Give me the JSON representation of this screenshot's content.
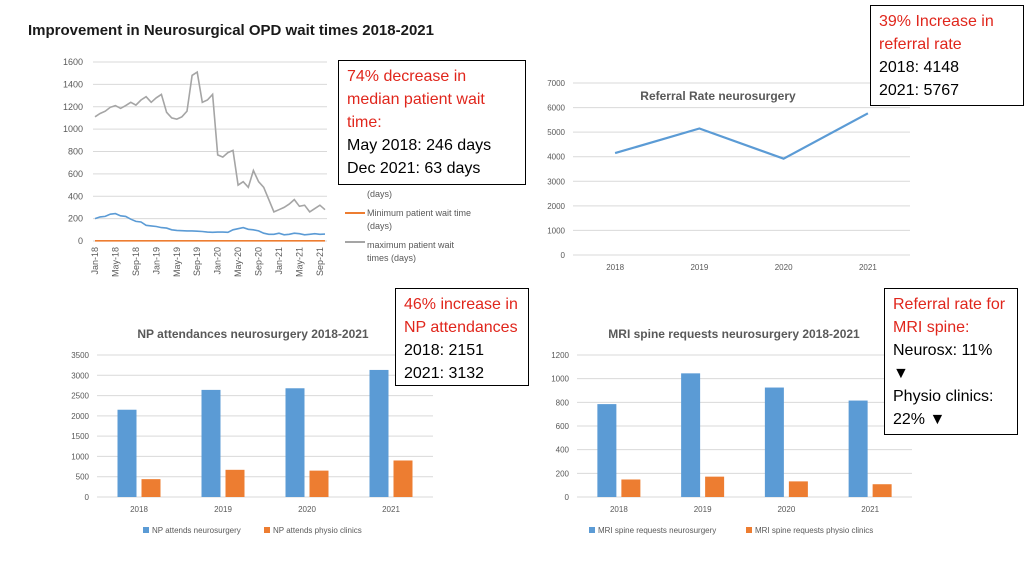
{
  "page_title": "Improvement in Neurosurgical OPD wait times  2018-2021",
  "callouts": {
    "median": {
      "headline": "74% decrease in median patient wait time:",
      "line1": "May 2018: 246 days",
      "line2": "Dec 2021: 63 days"
    },
    "referral": {
      "headline": "39% Increase in referral rate",
      "line1": "2018: 4148",
      "line2": "2021: 5767"
    },
    "np": {
      "headline": "46% increase in NP attendances",
      "line1": "2018: 2151",
      "line2": "2021: 3132"
    },
    "mri": {
      "headline": "Referral rate for MRI spine:",
      "line1": "Neurosx: 11% ▼",
      "line2": "Physio clinics: 22% ▼"
    }
  },
  "colors": {
    "blue": "#5b9bd5",
    "orange": "#ed7d31",
    "gray": "#a5a5a5",
    "red": "#e0261c"
  },
  "chart_data": [
    {
      "id": "wait_times",
      "type": "line",
      "title": "",
      "ylim": [
        0,
        1600
      ],
      "yticks": [
        0,
        200,
        400,
        600,
        800,
        1000,
        1200,
        1400,
        1600
      ],
      "tick_labels": [
        "Jan-18",
        "May-18",
        "Sep-18",
        "Jan-19",
        "May-19",
        "Sep-19",
        "Jan-20",
        "May-20",
        "Sep-20",
        "Jan-21",
        "May-21",
        "Sep-21"
      ],
      "legend": [
        "(days)",
        "Minimum patient wait time (days)",
        "maximum patient wait times (days)"
      ],
      "series": [
        {
          "name": "Median patient wait time (days)",
          "color": "#5b9bd5",
          "values": [
            200,
            215,
            220,
            240,
            245,
            225,
            220,
            195,
            175,
            170,
            140,
            135,
            130,
            120,
            115,
            100,
            95,
            92,
            90,
            90,
            88,
            85,
            80,
            78,
            80,
            80,
            78,
            100,
            110,
            120,
            105,
            100,
            90,
            70,
            60,
            60,
            70,
            55,
            60,
            70,
            65,
            55,
            60,
            65,
            60,
            62
          ]
        },
        {
          "name": "Minimum patient wait time (days)",
          "color": "#ed7d31",
          "values": [
            2,
            2,
            2,
            2,
            2,
            2,
            2,
            2,
            2,
            2,
            2,
            2,
            2,
            2,
            2,
            2,
            2,
            2,
            2,
            2,
            2,
            2,
            2,
            2,
            2,
            2,
            2,
            2,
            2,
            2,
            2,
            2,
            2,
            2,
            2,
            2,
            2,
            2,
            2,
            2,
            2,
            2,
            2,
            2,
            2,
            2
          ]
        },
        {
          "name": "maximum patient wait times (days)",
          "color": "#a5a5a5",
          "values": [
            1110,
            1140,
            1160,
            1195,
            1210,
            1185,
            1210,
            1240,
            1215,
            1260,
            1290,
            1240,
            1280,
            1310,
            1150,
            1100,
            1090,
            1110,
            1160,
            1480,
            1510,
            1240,
            1260,
            1310,
            770,
            750,
            790,
            810,
            500,
            530,
            480,
            630,
            530,
            480,
            370,
            260,
            280,
            300,
            330,
            370,
            310,
            320,
            260,
            290,
            320,
            280
          ]
        }
      ]
    },
    {
      "id": "referral_rate",
      "type": "line",
      "title": "Referral Rate neurosurgery",
      "categories": [
        "2018",
        "2019",
        "2020",
        "2021"
      ],
      "values": [
        4148,
        5150,
        3920,
        5767
      ],
      "ylim": [
        0,
        7000
      ],
      "yticks": [
        0,
        1000,
        2000,
        3000,
        4000,
        5000,
        6000,
        7000
      ],
      "color": "#5b9bd5"
    },
    {
      "id": "np_attendances",
      "type": "bar",
      "title": "NP attendances neurosurgery 2018-2021",
      "categories": [
        "2018",
        "2019",
        "2020",
        "2021"
      ],
      "ylim": [
        0,
        3500
      ],
      "yticks": [
        0,
        500,
        1000,
        1500,
        2000,
        2500,
        3000,
        3500
      ],
      "series": [
        {
          "name": "NP attends neurosurgery",
          "color": "#5b9bd5",
          "values": [
            2151,
            2640,
            2680,
            3132
          ]
        },
        {
          "name": "NP attends physio clinics",
          "color": "#ed7d31",
          "values": [
            440,
            670,
            650,
            900
          ]
        }
      ]
    },
    {
      "id": "mri_requests",
      "type": "bar",
      "title": "MRI spine requests neurosurgery 2018-2021",
      "categories": [
        "2018",
        "2019",
        "2020",
        "2021"
      ],
      "ylim": [
        0,
        1200
      ],
      "yticks": [
        0,
        200,
        400,
        600,
        800,
        1000,
        1200
      ],
      "series": [
        {
          "name": "MRI spine requests neurosurgery",
          "color": "#5b9bd5",
          "values": [
            785,
            1045,
            925,
            815
          ]
        },
        {
          "name": "MRI spine requests physio clinics",
          "color": "#ed7d31",
          "values": [
            148,
            172,
            132,
            108
          ]
        }
      ]
    }
  ]
}
